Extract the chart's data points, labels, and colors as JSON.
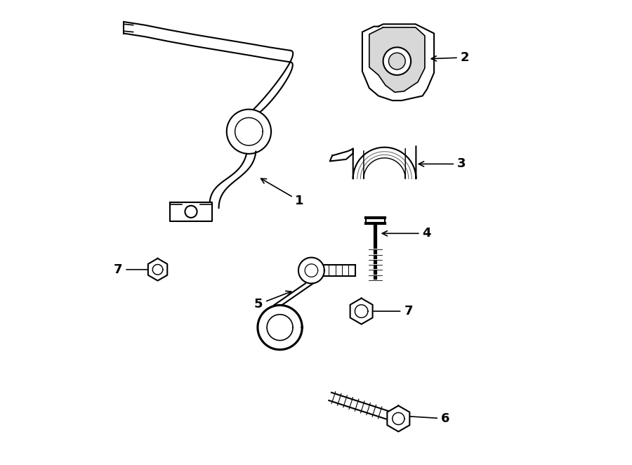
{
  "background_color": "#ffffff",
  "line_color": "#000000",
  "line_width": 1.5,
  "label_fontsize": 13,
  "label_fontweight": "bold"
}
